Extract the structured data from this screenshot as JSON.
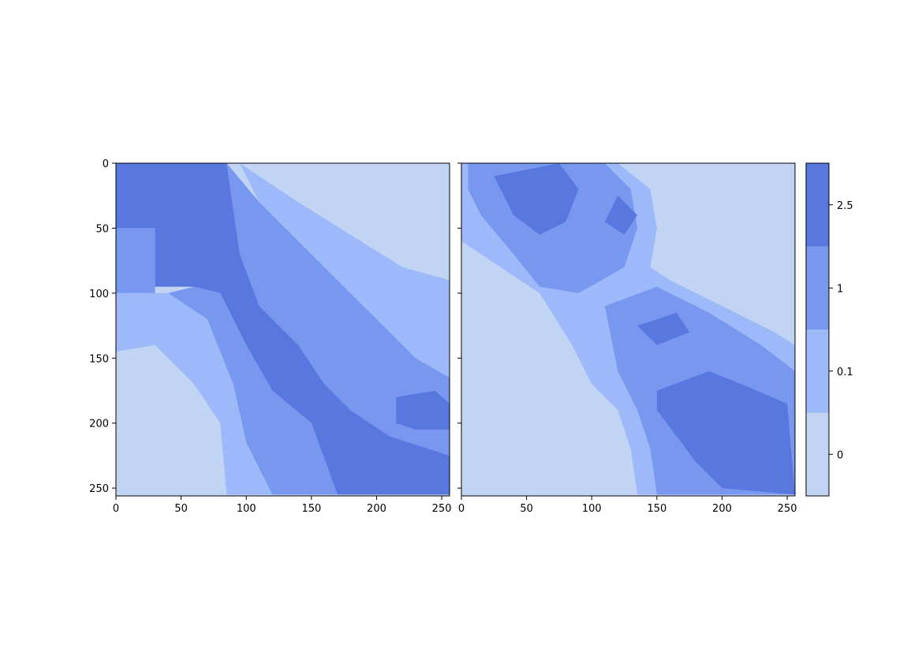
{
  "chart_data": [
    {
      "type": "heatmap",
      "panel": "left",
      "title": "",
      "xlabel": "",
      "ylabel": "",
      "xlim": [
        0,
        256
      ],
      "ylim": [
        256,
        0
      ],
      "xticks": [
        0,
        50,
        100,
        150,
        200,
        250
      ],
      "yticks": [
        0,
        50,
        100,
        150,
        200,
        250
      ],
      "y_inverted": true,
      "description_of_field": "banded categorical field running diagonally from top-left to bottom-right",
      "regions": [
        {
          "level": 0,
          "polygon": [
            [
              95,
              0
            ],
            [
              256,
              0
            ],
            [
              256,
              90
            ],
            [
              220,
              80
            ],
            [
              180,
              55
            ],
            [
              140,
              30
            ]
          ]
        },
        {
          "level": 0,
          "polygon": [
            [
              0,
              145
            ],
            [
              30,
              140
            ],
            [
              60,
              170
            ],
            [
              80,
              200
            ],
            [
              85,
              255
            ],
            [
              0,
              255
            ]
          ]
        },
        {
          "level": 0.1,
          "polygon": [
            [
              0,
              100
            ],
            [
              40,
              100
            ],
            [
              70,
              120
            ],
            [
              90,
              170
            ],
            [
              100,
              215
            ],
            [
              120,
              255
            ],
            [
              85,
              255
            ],
            [
              80,
              200
            ],
            [
              60,
              170
            ],
            [
              30,
              140
            ],
            [
              0,
              145
            ]
          ]
        },
        {
          "level": 0.1,
          "polygon": [
            [
              95,
              0
            ],
            [
              140,
              30
            ],
            [
              180,
              55
            ],
            [
              220,
              80
            ],
            [
              256,
              90
            ],
            [
              256,
              165
            ],
            [
              230,
              150
            ],
            [
              200,
              120
            ],
            [
              170,
              90
            ],
            [
              140,
              60
            ],
            [
              110,
              30
            ]
          ]
        },
        {
          "level": 1,
          "polygon": [
            [
              0,
              50
            ],
            [
              30,
              50
            ],
            [
              30,
              100
            ],
            [
              0,
              100
            ]
          ]
        },
        {
          "level": 1,
          "polygon": [
            [
              40,
              100
            ],
            [
              60,
              95
            ],
            [
              80,
              100
            ],
            [
              100,
              140
            ],
            [
              120,
              175
            ],
            [
              150,
              200
            ],
            [
              170,
              255
            ],
            [
              120,
              255
            ],
            [
              100,
              215
            ],
            [
              90,
              170
            ],
            [
              70,
              120
            ]
          ]
        },
        {
          "level": 1,
          "polygon": [
            [
              85,
              0
            ],
            [
              110,
              30
            ],
            [
              140,
              60
            ],
            [
              170,
              90
            ],
            [
              200,
              120
            ],
            [
              230,
              150
            ],
            [
              256,
              165
            ],
            [
              256,
              225
            ],
            [
              210,
              210
            ],
            [
              180,
              190
            ],
            [
              160,
              170
            ],
            [
              140,
              140
            ],
            [
              110,
              110
            ],
            [
              95,
              70
            ]
          ]
        },
        {
          "level": 2.5,
          "polygon": [
            [
              0,
              0
            ],
            [
              85,
              0
            ],
            [
              95,
              70
            ],
            [
              110,
              110
            ],
            [
              140,
              140
            ],
            [
              160,
              170
            ],
            [
              180,
              190
            ],
            [
              210,
              210
            ],
            [
              256,
              225
            ],
            [
              256,
              255
            ],
            [
              170,
              255
            ],
            [
              150,
              200
            ],
            [
              120,
              175
            ],
            [
              100,
              140
            ],
            [
              80,
              100
            ],
            [
              60,
              95
            ],
            [
              30,
              95
            ],
            [
              30,
              50
            ],
            [
              0,
              50
            ]
          ]
        },
        {
          "level": 2.5,
          "polygon": [
            [
              215,
              180
            ],
            [
              245,
              175
            ],
            [
              256,
              185
            ],
            [
              256,
              205
            ],
            [
              230,
              205
            ],
            [
              215,
              200
            ]
          ]
        }
      ]
    },
    {
      "type": "heatmap",
      "panel": "right",
      "title": "",
      "xlabel": "",
      "ylabel": "",
      "xlim": [
        0,
        256
      ],
      "ylim": [
        256,
        0
      ],
      "xticks": [
        0,
        50,
        100,
        150,
        200,
        250
      ],
      "y_inverted": true,
      "description_of_field": "noisy categorical field, high values along a diagonal band",
      "regions": [
        {
          "level": 0.1,
          "polygon": [
            [
              0,
              0
            ],
            [
              120,
              0
            ],
            [
              145,
              20
            ],
            [
              150,
              50
            ],
            [
              145,
              80
            ],
            [
              160,
              90
            ],
            [
              200,
              110
            ],
            [
              240,
              130
            ],
            [
              256,
              140
            ],
            [
              256,
              255
            ],
            [
              135,
              255
            ],
            [
              130,
              220
            ],
            [
              120,
              190
            ],
            [
              100,
              170
            ],
            [
              85,
              140
            ],
            [
              60,
              100
            ],
            [
              30,
              80
            ],
            [
              0,
              60
            ]
          ]
        },
        {
          "level": 1,
          "polygon": [
            [
              5,
              0
            ],
            [
              110,
              0
            ],
            [
              130,
              20
            ],
            [
              135,
              50
            ],
            [
              125,
              80
            ],
            [
              90,
              100
            ],
            [
              60,
              95
            ],
            [
              40,
              70
            ],
            [
              15,
              40
            ],
            [
              5,
              20
            ]
          ]
        },
        {
          "level": 1,
          "polygon": [
            [
              110,
              110
            ],
            [
              150,
              95
            ],
            [
              190,
              115
            ],
            [
              230,
              140
            ],
            [
              256,
              160
            ],
            [
              256,
              255
            ],
            [
              150,
              255
            ],
            [
              145,
              220
            ],
            [
              135,
              190
            ],
            [
              120,
              160
            ]
          ]
        },
        {
          "level": 2.5,
          "polygon": [
            [
              25,
              10
            ],
            [
              75,
              0
            ],
            [
              90,
              20
            ],
            [
              80,
              45
            ],
            [
              60,
              55
            ],
            [
              40,
              40
            ]
          ]
        },
        {
          "level": 2.5,
          "polygon": [
            [
              120,
              25
            ],
            [
              135,
              40
            ],
            [
              125,
              55
            ],
            [
              110,
              45
            ]
          ]
        },
        {
          "level": 2.5,
          "polygon": [
            [
              150,
              175
            ],
            [
              190,
              160
            ],
            [
              215,
              170
            ],
            [
              250,
              185
            ],
            [
              256,
              255
            ],
            [
              200,
              250
            ],
            [
              180,
              230
            ],
            [
              150,
              190
            ]
          ]
        },
        {
          "level": 2.5,
          "polygon": [
            [
              135,
              125
            ],
            [
              165,
              115
            ],
            [
              175,
              130
            ],
            [
              150,
              140
            ]
          ]
        }
      ]
    }
  ],
  "colorbar": {
    "labels": [
      "0",
      "0.1",
      "1",
      "2.5"
    ],
    "levels": [
      0,
      0.1,
      1,
      2.5
    ],
    "colors": [
      "#c2d4f4",
      "#9db9fa",
      "#7898f0",
      "#5878e0"
    ]
  },
  "colors": {
    "level_0": "#c2d4f4",
    "level_0.1": "#9db9fa",
    "level_1": "#7898f0",
    "level_2.5": "#5878e0"
  }
}
